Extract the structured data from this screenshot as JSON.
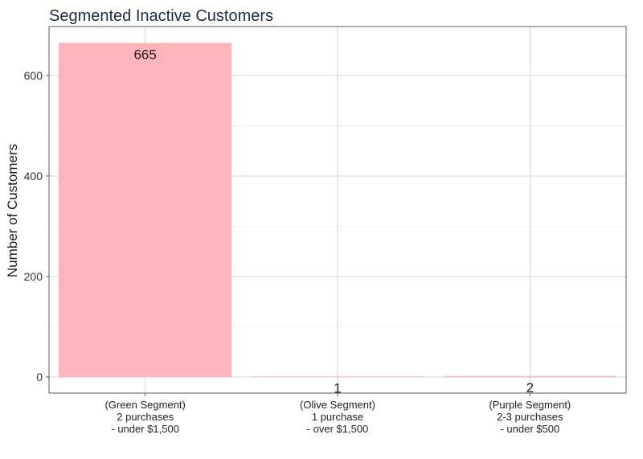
{
  "chart_data": {
    "type": "bar",
    "title": "Segmented Inactive Customers",
    "xlabel": "",
    "ylabel": "Number of Customers",
    "categories": [
      [
        "(Green Segment)",
        "2 purchases",
        "- under $1,500"
      ],
      [
        "(Olive Segment)",
        "1 purchase",
        "- over $1,500"
      ],
      [
        "(Purple Segment)",
        "2-3 purchases",
        "- under $500"
      ]
    ],
    "values": [
      665,
      1,
      2
    ],
    "data_labels": [
      "665",
      "1",
      "2"
    ],
    "ylim": [
      0,
      700
    ],
    "yticks": [
      0,
      200,
      400,
      600
    ],
    "grid": true,
    "legend": "none",
    "bar_color": "#ffb3ba"
  }
}
